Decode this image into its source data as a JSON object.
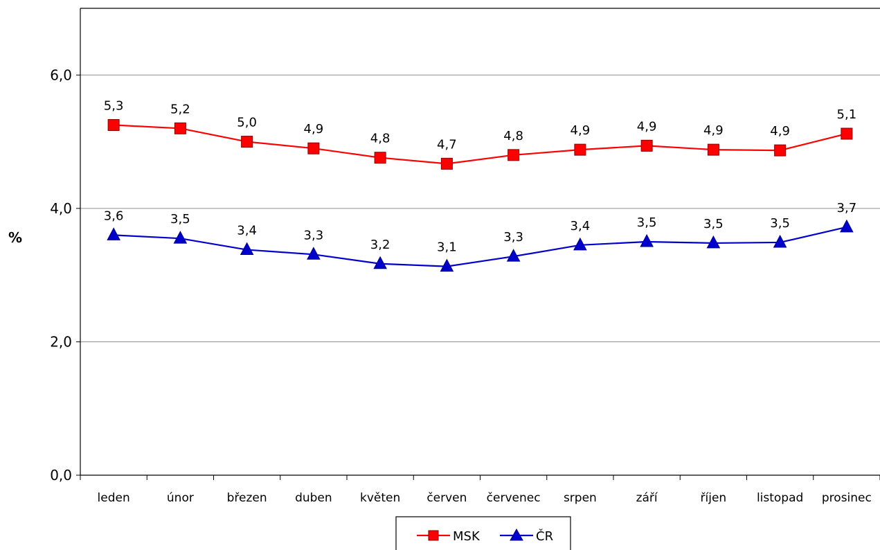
{
  "chart_data": {
    "type": "line",
    "title": "",
    "xlabel": "",
    "ylabel": "%",
    "ylim": [
      0,
      7
    ],
    "yticks": [
      "0,0",
      "2,0",
      "4,0",
      "6,0"
    ],
    "grid": true,
    "legend": "bottom-center",
    "categories": [
      "leden",
      "únor",
      "březen",
      "duben",
      "květen",
      "červen",
      "červenec",
      "srpen",
      "září",
      "říjen",
      "listopad",
      "prosinec"
    ],
    "series": [
      {
        "name": "MSK",
        "color": "#ff0000",
        "marker": "square",
        "values": [
          5.25,
          5.2,
          5.0,
          4.9,
          4.76,
          4.67,
          4.8,
          4.88,
          4.94,
          4.88,
          4.87,
          5.12
        ],
        "labels": [
          "5,3",
          "5,2",
          "5,0",
          "4,9",
          "4,8",
          "4,7",
          "4,8",
          "4,9",
          "4,9",
          "4,9",
          "4,9",
          "5,1"
        ]
      },
      {
        "name": "ČR",
        "color": "#0000cc",
        "marker": "triangle",
        "values": [
          3.6,
          3.55,
          3.38,
          3.31,
          3.17,
          3.13,
          3.28,
          3.45,
          3.5,
          3.48,
          3.49,
          3.72
        ],
        "labels": [
          "3,6",
          "3,5",
          "3,4",
          "3,3",
          "3,2",
          "3,1",
          "3,3",
          "3,4",
          "3,5",
          "3,5",
          "3,5",
          "3,7"
        ]
      }
    ]
  }
}
